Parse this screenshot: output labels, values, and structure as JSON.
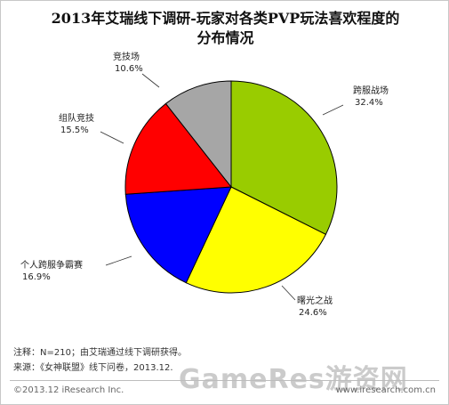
{
  "header": {
    "title_line1": "2013年艾瑞线下调研-玩家对各类PVP玩法喜欢程度的",
    "title_line2": "分布情况"
  },
  "chart_data": {
    "type": "pie",
    "title": "2013年艾瑞线下调研-玩家对各类PVP玩法喜欢程度的分布情况",
    "slices": [
      {
        "label": "跨服战场",
        "value": 32.4,
        "display": "32.4%",
        "color": "#99cc00"
      },
      {
        "label": "曙光之战",
        "value": 24.6,
        "display": "24.6%",
        "color": "#ffff00"
      },
      {
        "label": "个人跨服争霸赛",
        "value": 16.9,
        "display": "16.9%",
        "color": "#0000ff"
      },
      {
        "label": "组队竞技",
        "value": 15.5,
        "display": "15.5%",
        "color": "#ff0000"
      },
      {
        "label": "竞技场",
        "value": 10.6,
        "display": "10.6%",
        "color": "#a6a6a6"
      }
    ]
  },
  "notes": {
    "note_line": "注释：N=210；由艾瑞通过线下调研获得。",
    "source_line": "来源：《女神联盟》线下问卷，2013.12."
  },
  "footer": {
    "copyright": "©2013.12 iResearch Inc.",
    "website": "www.iresearch.com.cn"
  },
  "watermark": {
    "text": "GameRes游资网"
  }
}
